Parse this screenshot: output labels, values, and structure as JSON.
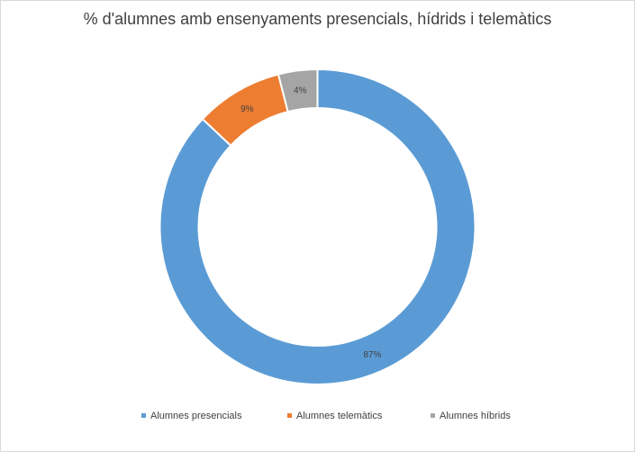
{
  "chart_data": {
    "type": "pie",
    "subtype": "doughnut",
    "title": "% d'alumnes amb ensenyaments presencials, hídrids i telemàtics",
    "slices": [
      {
        "name": "Alumnes presencials",
        "value": 87,
        "label": "87%",
        "color": "#5B9BD5"
      },
      {
        "name": "Alumnes telemàtics",
        "value": 9,
        "label": "9%",
        "color": "#ED7D31"
      },
      {
        "name": "Alumnes híbrids",
        "value": 4,
        "label": "4%",
        "color": "#A5A5A5"
      }
    ],
    "legend_position": "bottom"
  }
}
